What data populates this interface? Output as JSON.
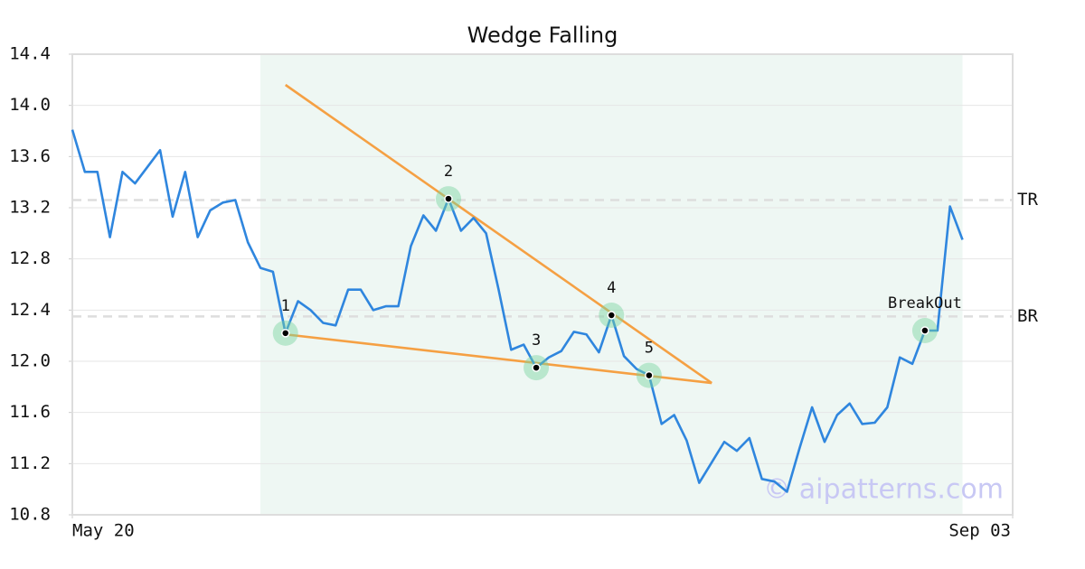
{
  "chart_data": {
    "type": "line",
    "title": "Wedge Falling",
    "watermark": "© aipatterns.com",
    "color": "#2f86de",
    "x": [
      0,
      1,
      2,
      3,
      4,
      5,
      6,
      7,
      8,
      9,
      10,
      11,
      12,
      13,
      14,
      15,
      16,
      17,
      18,
      19,
      20,
      21,
      22,
      23,
      24,
      25,
      26,
      27,
      28,
      29,
      30,
      31,
      32,
      33,
      34,
      35,
      36,
      37,
      38,
      39,
      40,
      41,
      42,
      43,
      44,
      45,
      46,
      47,
      48,
      49,
      50,
      51,
      52,
      53,
      54,
      55,
      56,
      57,
      58,
      59,
      60,
      61,
      62,
      63,
      64,
      65,
      66,
      67,
      68,
      69,
      70,
      71
    ],
    "values": [
      13.81,
      13.48,
      13.48,
      12.97,
      13.48,
      13.39,
      13.52,
      13.65,
      13.13,
      13.48,
      12.97,
      13.18,
      13.24,
      13.26,
      12.93,
      12.73,
      12.7,
      12.22,
      12.47,
      12.4,
      12.3,
      12.28,
      12.56,
      12.56,
      12.4,
      12.43,
      12.43,
      12.9,
      13.14,
      13.02,
      13.27,
      13.02,
      13.12,
      13.0,
      12.56,
      12.09,
      12.13,
      11.95,
      12.03,
      12.08,
      12.23,
      12.21,
      12.07,
      12.36,
      12.04,
      11.94,
      11.89,
      11.51,
      11.58,
      11.38,
      11.05,
      11.21,
      11.37,
      11.3,
      11.4,
      11.08,
      11.06,
      10.98,
      11.32,
      11.64,
      11.37,
      11.58,
      11.67,
      11.51,
      11.52,
      11.64,
      12.03,
      11.98,
      12.24,
      12.24,
      13.21,
      12.95
    ],
    "xlim": [
      0,
      75
    ],
    "xticks": [
      {
        "value": 0,
        "label": "May 20"
      },
      {
        "value": 75,
        "label": "Sep 03"
      }
    ],
    "ylim": [
      10.8,
      14.4
    ],
    "yticks": [
      10.8,
      11.2,
      11.6,
      {
        "value": 12.0,
        "label": "12.0"
      },
      12.4,
      12.8,
      13.2,
      13.6,
      {
        "value": 14.0,
        "label": "14.0"
      },
      14.4
    ],
    "grid": true,
    "highlight_x": [
      15,
      71
    ],
    "highlight_color": "#eef7f3",
    "trend_color": "#f5a043",
    "trend_lines": [
      {
        "x": [
          17,
          51
        ],
        "values": [
          14.16,
          11.83
        ]
      },
      {
        "x": [
          17,
          51
        ],
        "values": [
          12.21,
          11.83
        ]
      }
    ],
    "levels": [
      {
        "label": "TR",
        "value": 13.26
      },
      {
        "label": "BR",
        "value": 12.35
      }
    ],
    "pattern_points": [
      {
        "x": 17,
        "label": "1"
      },
      {
        "x": 30,
        "label": "2"
      },
      {
        "x": 37,
        "label": "3"
      },
      {
        "x": 43,
        "label": "4"
      },
      {
        "x": 46,
        "label": "5"
      },
      {
        "x": 68,
        "label": "BreakOut"
      }
    ]
  }
}
